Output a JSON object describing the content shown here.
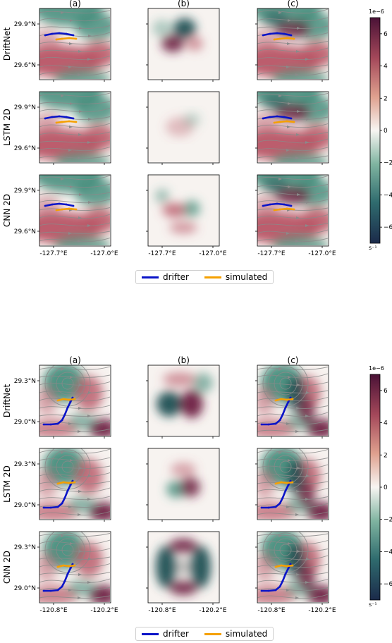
{
  "colors": {
    "drifter": "#0a14c8",
    "simulated": "#f5a000",
    "cmap_low": "#1b2a4a",
    "cmap_mid": "#ffffff",
    "cmap_high": "#4a1236",
    "streamline": "#8a8a8a"
  },
  "legend": {
    "drifter": "drifter",
    "simulated": "simulated"
  },
  "chart_data": [
    {
      "type": "heatmap",
      "title": "",
      "column_titles": [
        "(a)",
        "(b)",
        "(c)"
      ],
      "row_labels": [
        "DriftNet",
        "LSTM 2D",
        "CNN 2D"
      ],
      "x_ticks": [
        "-127.7°E",
        "-127.0°E"
      ],
      "y_ticks": [
        "29.9°N",
        "29.6°N"
      ],
      "colorbar": {
        "ticks": [
          "6",
          "4",
          "2",
          "0",
          "−2",
          "−4",
          "−6"
        ],
        "range": [
          -7,
          7
        ],
        "scale_label": "1e−6",
        "unit_label": "s⁻¹"
      },
      "legend": [
        "drifter",
        "simulated"
      ]
    },
    {
      "type": "heatmap",
      "title": "",
      "column_titles": [
        "(a)",
        "(b)",
        "(c)"
      ],
      "row_labels": [
        "DriftNet",
        "LSTM 2D",
        "CNN 2D"
      ],
      "x_ticks": [
        "-120.8°E",
        "-120.2°E"
      ],
      "y_ticks": [
        "29.3°N",
        "29.0°N"
      ],
      "colorbar": {
        "ticks": [
          "6",
          "4",
          "2",
          "0",
          "−2",
          "−4",
          "−6"
        ],
        "range": [
          -7,
          7
        ],
        "scale_label": "1e−6",
        "unit_label": "s⁻¹"
      },
      "legend": [
        "drifter",
        "simulated"
      ]
    }
  ]
}
